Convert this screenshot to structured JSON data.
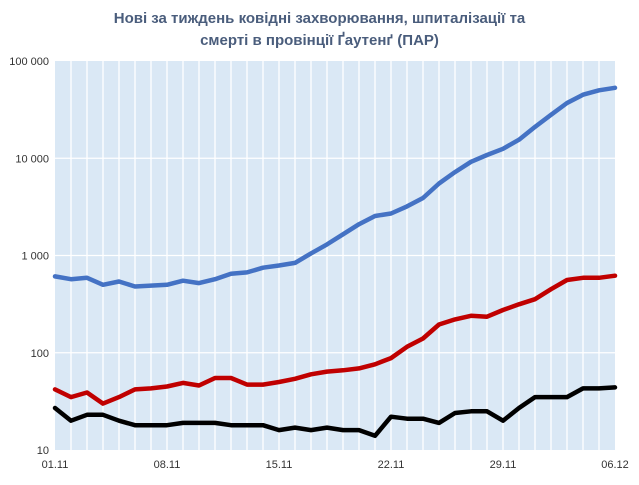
{
  "chart_data": {
    "type": "line",
    "title_lines": [
      "Нові за тиждень ковідні захворювання, шпиталізації та",
      "смерті в провінції Ґаутенґ  (ПАР)"
    ],
    "y_scale": "log",
    "ylim": [
      10,
      100000
    ],
    "y_ticks": [
      {
        "value": 10,
        "label": "10"
      },
      {
        "value": 100,
        "label": "100"
      },
      {
        "value": 1000,
        "label": "1 000"
      },
      {
        "value": 10000,
        "label": "10 000"
      },
      {
        "value": 100000,
        "label": "100 000"
      }
    ],
    "x": [
      "01.11",
      "02.11",
      "03.11",
      "04.11",
      "05.11",
      "06.11",
      "07.11",
      "08.11",
      "09.11",
      "10.11",
      "11.11",
      "12.11",
      "13.11",
      "14.11",
      "15.11",
      "16.11",
      "17.11",
      "18.11",
      "19.11",
      "20.11",
      "21.11",
      "22.11",
      "23.11",
      "24.11",
      "25.11",
      "26.11",
      "27.11",
      "28.11",
      "29.11",
      "30.11",
      "01.12",
      "02.12",
      "03.12",
      "04.12",
      "05.12",
      "06.12"
    ],
    "x_tick_labels": [
      "01.11",
      "08.11",
      "15.11",
      "22.11",
      "29.11",
      "06.12"
    ],
    "grid": true,
    "plot_background": "#dae8f5",
    "grid_color": "#ffffff",
    "series": [
      {
        "color": "#4472c4",
        "values": [
          610,
          570,
          590,
          500,
          540,
          480,
          490,
          500,
          550,
          520,
          570,
          650,
          670,
          750,
          790,
          840,
          1050,
          1300,
          1650,
          2100,
          2550,
          2700,
          3200,
          3900,
          5500,
          7200,
          9200,
          10800,
          12500,
          15500,
          21000,
          28000,
          37000,
          45000,
          50000,
          53000
        ]
      },
      {
        "color": "#c00000",
        "values": [
          42,
          35,
          39,
          30,
          35,
          42,
          43,
          45,
          49,
          46,
          55,
          55,
          47,
          47,
          50,
          54,
          60,
          64,
          66,
          69,
          76,
          88,
          115,
          140,
          195,
          220,
          240,
          235,
          275,
          315,
          355,
          450,
          560,
          590,
          590,
          620
        ]
      },
      {
        "color": "#000000",
        "values": [
          27,
          20,
          23,
          23,
          20,
          18,
          18,
          18,
          19,
          19,
          19,
          18,
          18,
          18,
          16,
          17,
          16,
          17,
          16,
          16,
          14,
          22,
          21,
          21,
          19,
          24,
          25,
          25,
          20,
          27,
          35,
          35,
          35,
          43,
          43,
          44
        ]
      }
    ]
  }
}
